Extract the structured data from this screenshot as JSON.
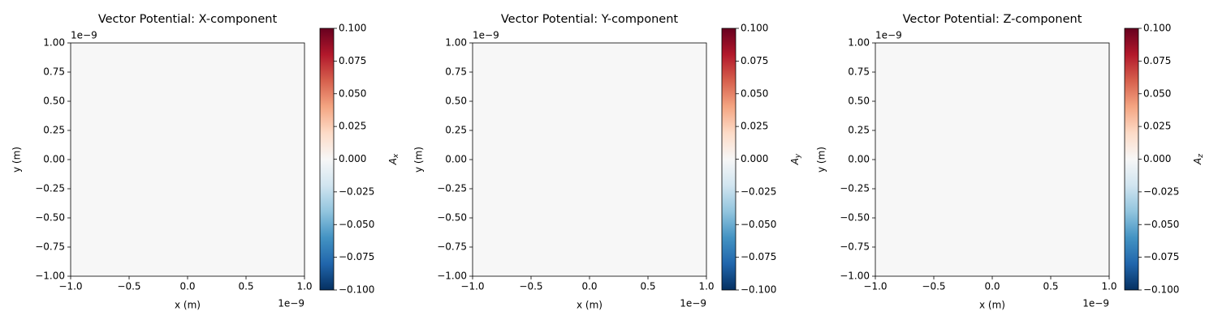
{
  "chart_data": [
    {
      "type": "heatmap",
      "title": "Vector Potential: X-component",
      "xlabel": "x (m)",
      "ylabel": "y (m)",
      "x_offset_text": "1e−9",
      "y_offset_text": "1e−9",
      "xlim": [
        -1,
        1
      ],
      "ylim": [
        -1,
        1
      ],
      "z": [
        [
          0
        ]
      ],
      "xticks": [
        {
          "value": -1,
          "label": "−1.0"
        },
        {
          "value": -0.5,
          "label": "−0.5"
        },
        {
          "value": 0,
          "label": "0.0"
        },
        {
          "value": 0.5,
          "label": "0.5"
        },
        {
          "value": 1,
          "label": "1.0"
        }
      ],
      "yticks": [
        {
          "value": -1,
          "label": "−1.00"
        },
        {
          "value": -0.75,
          "label": "−0.75"
        },
        {
          "value": -0.5,
          "label": "−0.50"
        },
        {
          "value": -0.25,
          "label": "−0.25"
        },
        {
          "value": 0,
          "label": "0.00"
        },
        {
          "value": 0.25,
          "label": "0.25"
        },
        {
          "value": 0.5,
          "label": "0.50"
        },
        {
          "value": 0.75,
          "label": "0.75"
        },
        {
          "value": 1,
          "label": "1.00"
        }
      ],
      "clim": [
        -0.1,
        0.1
      ],
      "cticks": [
        {
          "value": -0.1,
          "label": "−0.100"
        },
        {
          "value": -0.075,
          "label": "−0.075"
        },
        {
          "value": -0.05,
          "label": "−0.050"
        },
        {
          "value": -0.025,
          "label": "−0.025"
        },
        {
          "value": 0,
          "label": "0.000"
        },
        {
          "value": 0.025,
          "label": "0.025"
        },
        {
          "value": 0.05,
          "label": "0.050"
        },
        {
          "value": 0.075,
          "label": "0.075"
        },
        {
          "value": 0.1,
          "label": "0.100"
        }
      ],
      "colorbar_label": "A",
      "colorbar_label_subscript": "x",
      "colormap": [
        "#053061",
        "#2166ac",
        "#4393c3",
        "#92c5de",
        "#d1e5f0",
        "#f7f7f7",
        "#fddbc7",
        "#f4a582",
        "#d6604d",
        "#b2182b",
        "#67001f"
      ]
    },
    {
      "type": "heatmap",
      "title": "Vector Potential: Y-component",
      "xlabel": "x (m)",
      "ylabel": "y (m)",
      "x_offset_text": "1e−9",
      "y_offset_text": "1e−9",
      "xlim": [
        -1,
        1
      ],
      "ylim": [
        -1,
        1
      ],
      "z": [
        [
          0
        ]
      ],
      "xticks": [
        {
          "value": -1,
          "label": "−1.0"
        },
        {
          "value": -0.5,
          "label": "−0.5"
        },
        {
          "value": 0,
          "label": "0.0"
        },
        {
          "value": 0.5,
          "label": "0.5"
        },
        {
          "value": 1,
          "label": "1.0"
        }
      ],
      "yticks": [
        {
          "value": -1,
          "label": "−1.00"
        },
        {
          "value": -0.75,
          "label": "−0.75"
        },
        {
          "value": -0.5,
          "label": "−0.50"
        },
        {
          "value": -0.25,
          "label": "−0.25"
        },
        {
          "value": 0,
          "label": "0.00"
        },
        {
          "value": 0.25,
          "label": "0.25"
        },
        {
          "value": 0.5,
          "label": "0.50"
        },
        {
          "value": 0.75,
          "label": "0.75"
        },
        {
          "value": 1,
          "label": "1.00"
        }
      ],
      "clim": [
        -0.1,
        0.1
      ],
      "cticks": [
        {
          "value": -0.1,
          "label": "−0.100"
        },
        {
          "value": -0.075,
          "label": "−0.075"
        },
        {
          "value": -0.05,
          "label": "−0.050"
        },
        {
          "value": -0.025,
          "label": "−0.025"
        },
        {
          "value": 0,
          "label": "0.000"
        },
        {
          "value": 0.025,
          "label": "0.025"
        },
        {
          "value": 0.05,
          "label": "0.050"
        },
        {
          "value": 0.075,
          "label": "0.075"
        },
        {
          "value": 0.1,
          "label": "0.100"
        }
      ],
      "colorbar_label": "A",
      "colorbar_label_subscript": "y",
      "colormap": [
        "#053061",
        "#2166ac",
        "#4393c3",
        "#92c5de",
        "#d1e5f0",
        "#f7f7f7",
        "#fddbc7",
        "#f4a582",
        "#d6604d",
        "#b2182b",
        "#67001f"
      ]
    },
    {
      "type": "heatmap",
      "title": "Vector Potential: Z-component",
      "xlabel": "x (m)",
      "ylabel": "y (m)",
      "x_offset_text": "1e−9",
      "y_offset_text": "1e−9",
      "xlim": [
        -1,
        1
      ],
      "ylim": [
        -1,
        1
      ],
      "z": [
        [
          0
        ]
      ],
      "xticks": [
        {
          "value": -1,
          "label": "−1.0"
        },
        {
          "value": -0.5,
          "label": "−0.5"
        },
        {
          "value": 0,
          "label": "0.0"
        },
        {
          "value": 0.5,
          "label": "0.5"
        },
        {
          "value": 1,
          "label": "1.0"
        }
      ],
      "yticks": [
        {
          "value": -1,
          "label": "−1.00"
        },
        {
          "value": -0.75,
          "label": "−0.75"
        },
        {
          "value": -0.5,
          "label": "−0.50"
        },
        {
          "value": -0.25,
          "label": "−0.25"
        },
        {
          "value": 0,
          "label": "0.00"
        },
        {
          "value": 0.25,
          "label": "0.25"
        },
        {
          "value": 0.5,
          "label": "0.50"
        },
        {
          "value": 0.75,
          "label": "0.75"
        },
        {
          "value": 1,
          "label": "1.00"
        }
      ],
      "clim": [
        -0.1,
        0.1
      ],
      "cticks": [
        {
          "value": -0.1,
          "label": "−0.100"
        },
        {
          "value": -0.075,
          "label": "−0.075"
        },
        {
          "value": -0.05,
          "label": "−0.050"
        },
        {
          "value": -0.025,
          "label": "−0.025"
        },
        {
          "value": 0,
          "label": "0.000"
        },
        {
          "value": 0.025,
          "label": "0.025"
        },
        {
          "value": 0.05,
          "label": "0.050"
        },
        {
          "value": 0.075,
          "label": "0.075"
        },
        {
          "value": 0.1,
          "label": "0.100"
        }
      ],
      "colorbar_label": "A",
      "colorbar_label_subscript": "z",
      "colormap": [
        "#053061",
        "#2166ac",
        "#4393c3",
        "#92c5de",
        "#d1e5f0",
        "#f7f7f7",
        "#fddbc7",
        "#f4a582",
        "#d6604d",
        "#b2182b",
        "#67001f"
      ]
    }
  ]
}
